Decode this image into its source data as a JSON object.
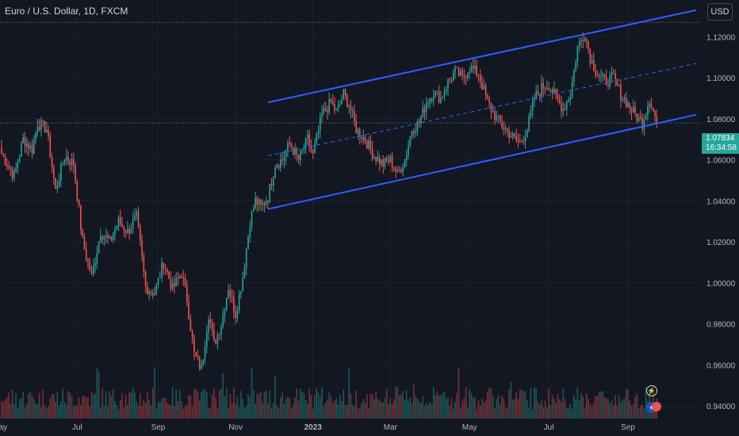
{
  "header": {
    "title": "Euro / U.S. Dollar, 1D, FXCM",
    "currency": "USD"
  },
  "price_tag": {
    "price": "1.07834",
    "countdown": "16:34:58"
  },
  "colors": {
    "background": "#131722",
    "up": "#26a69a",
    "down": "#ef5350",
    "channel": "#2962ff",
    "grid": "#1e222d",
    "text": "#b2b5be"
  },
  "icons": [
    "lightning-icon",
    "euro-flag-icon",
    "event-marker-icon"
  ],
  "chart_data": {
    "type": "candlestick",
    "symbol": "EURUSD",
    "ylim": [
      0.935,
      1.136
    ],
    "y_ticks": [
      "1.12000",
      "1.10000",
      "1.08000",
      "1.06000",
      "1.04000",
      "1.02000",
      "1.00000",
      "0.98000",
      "0.96000",
      "0.94000"
    ],
    "y_tick_values": [
      1.12,
      1.1,
      1.08,
      1.06,
      1.04,
      1.02,
      1.0,
      0.98,
      0.96,
      0.94
    ],
    "x_ticks": [
      "May",
      "Jul",
      "Sep",
      "Nov",
      "2023",
      "Mar",
      "May",
      "Jul",
      "Sep"
    ],
    "x_tick_index": [
      -1,
      42,
      87,
      130,
      173,
      216,
      260,
      304,
      348
    ],
    "close_path": [
      [
        0,
        1.063
      ],
      [
        7,
        1.052
      ],
      [
        12,
        1.07
      ],
      [
        17,
        1.065
      ],
      [
        20,
        1.078
      ],
      [
        25,
        1.075
      ],
      [
        30,
        1.045
      ],
      [
        35,
        1.062
      ],
      [
        40,
        1.058
      ],
      [
        45,
        1.02
      ],
      [
        50,
        1.003
      ],
      [
        55,
        1.025
      ],
      [
        60,
        1.02
      ],
      [
        65,
        1.03
      ],
      [
        70,
        1.025
      ],
      [
        75,
        1.032
      ],
      [
        80,
        0.998
      ],
      [
        85,
        0.995
      ],
      [
        90,
        1.01
      ],
      [
        95,
        0.997
      ],
      [
        100,
        1.005
      ],
      [
        103,
        0.992
      ],
      [
        107,
        0.965
      ],
      [
        111,
        0.958
      ],
      [
        115,
        0.985
      ],
      [
        118,
        0.97
      ],
      [
        122,
        0.98
      ],
      [
        126,
        0.998
      ],
      [
        130,
        0.985
      ],
      [
        134,
        1.003
      ],
      [
        138,
        1.03
      ],
      [
        141,
        1.04
      ],
      [
        144,
        1.037
      ],
      [
        148,
        1.042
      ],
      [
        152,
        1.058
      ],
      [
        156,
        1.06
      ],
      [
        160,
        1.068
      ],
      [
        165,
        1.06
      ],
      [
        170,
        1.07
      ],
      [
        173,
        1.062
      ],
      [
        178,
        1.082
      ],
      [
        183,
        1.088
      ],
      [
        186,
        1.083
      ],
      [
        190,
        1.092
      ],
      [
        193,
        1.087
      ],
      [
        197,
        1.075
      ],
      [
        202,
        1.07
      ],
      [
        207,
        1.062
      ],
      [
        212,
        1.058
      ],
      [
        216,
        1.06
      ],
      [
        220,
        1.053
      ],
      [
        224,
        1.06
      ],
      [
        228,
        1.075
      ],
      [
        232,
        1.078
      ],
      [
        236,
        1.088
      ],
      [
        240,
        1.093
      ],
      [
        244,
        1.09
      ],
      [
        248,
        1.098
      ],
      [
        252,
        1.103
      ],
      [
        256,
        1.1
      ],
      [
        260,
        1.105
      ],
      [
        265,
        1.102
      ],
      [
        270,
        1.088
      ],
      [
        275,
        1.08
      ],
      [
        280,
        1.075
      ],
      [
        285,
        1.07
      ],
      [
        288,
        1.068
      ],
      [
        292,
        1.075
      ],
      [
        296,
        1.09
      ],
      [
        300,
        1.095
      ],
      [
        304,
        1.097
      ],
      [
        308,
        1.09
      ],
      [
        312,
        1.085
      ],
      [
        316,
        1.092
      ],
      [
        320,
        1.115
      ],
      [
        324,
        1.122
      ],
      [
        327,
        1.11
      ],
      [
        331,
        1.102
      ],
      [
        335,
        1.098
      ],
      [
        340,
        1.1
      ],
      [
        344,
        1.092
      ],
      [
        348,
        1.087
      ],
      [
        352,
        1.082
      ],
      [
        356,
        1.078
      ],
      [
        360,
        1.09
      ],
      [
        364,
        1.078
      ]
    ],
    "volume_range": [
      0.3,
      1.0
    ],
    "channel": {
      "upper": [
        [
          148,
          1.088
        ],
        [
          386,
          1.133
        ]
      ],
      "middle": [
        [
          148,
          1.062
        ],
        [
          386,
          1.107
        ]
      ],
      "lower": [
        [
          148,
          1.036
        ],
        [
          386,
          1.082
        ]
      ]
    },
    "horizontal_levels": [
      1.127,
      1.078
    ],
    "last_price": 1.07834
  }
}
